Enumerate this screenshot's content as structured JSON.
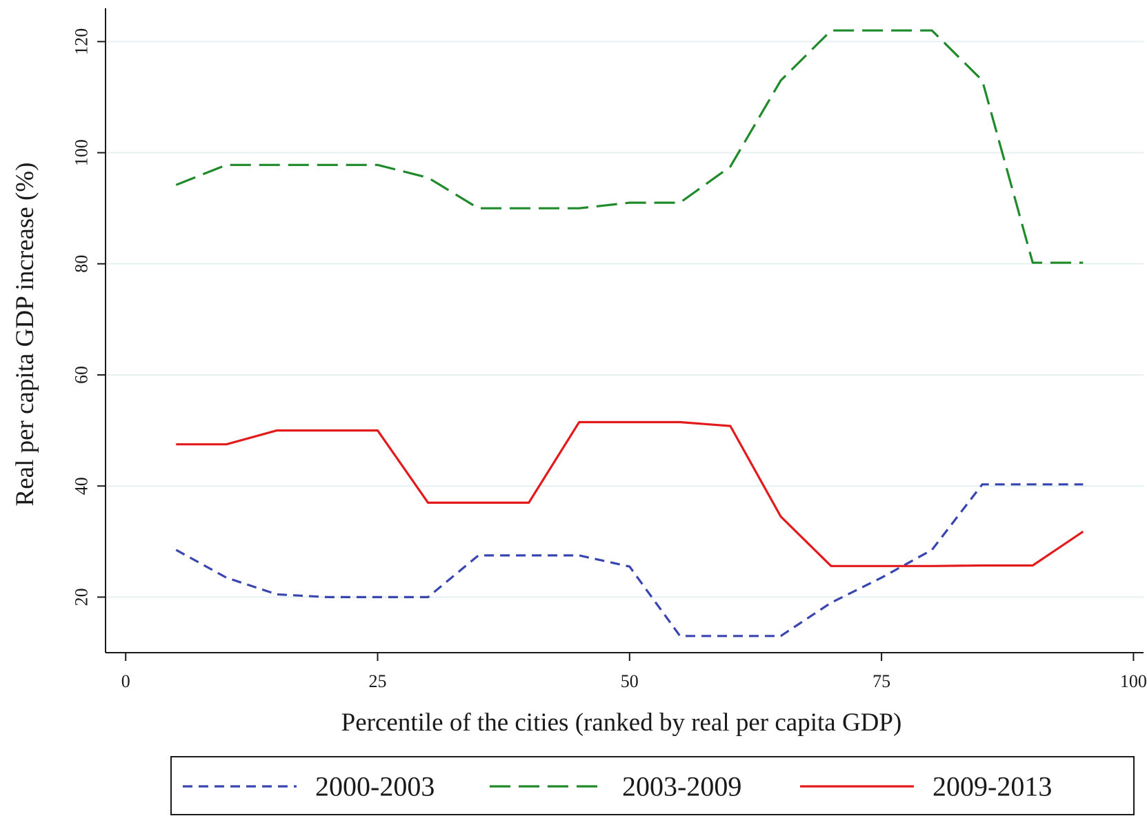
{
  "chart_data": {
    "type": "line",
    "xlabel": "Percentile of the cities (ranked by real per capita GDP)",
    "ylabel": "Real per capita GDP increase (%)",
    "xlim": [
      -2,
      101
    ],
    "ylim": [
      10,
      126
    ],
    "xticks": [
      0,
      25,
      50,
      75,
      100
    ],
    "xtick_labels": [
      "0",
      "25",
      "50",
      "75",
      "100"
    ],
    "yticks": [
      20,
      40,
      60,
      80,
      100,
      120
    ],
    "ytick_labels": [
      "20",
      "40",
      "60",
      "80",
      "100",
      "120"
    ],
    "grid": "horizontal",
    "legend_position": "bottom",
    "series": [
      {
        "name": "2000-2003",
        "color": "#3a46b0",
        "dash": "short-dash",
        "x": [
          5,
          10,
          15,
          20,
          25,
          30,
          35,
          40,
          45,
          50,
          55,
          60,
          65,
          70,
          75,
          80,
          85,
          90,
          95
        ],
        "y": [
          28.5,
          23.5,
          20.5,
          20,
          20,
          20,
          27.5,
          27.5,
          27.5,
          25.5,
          13,
          13,
          13,
          19,
          23.5,
          28.5,
          40.3,
          40.3,
          40.3
        ]
      },
      {
        "name": "2003-2009",
        "color": "#1f8a2a",
        "dash": "long-dash",
        "x": [
          5,
          10,
          15,
          20,
          25,
          30,
          35,
          40,
          45,
          50,
          55,
          60,
          65,
          70,
          75,
          80,
          85,
          90,
          95
        ],
        "y": [
          94.2,
          97.8,
          97.8,
          97.8,
          97.8,
          95.5,
          90,
          90,
          90,
          91,
          91,
          97.5,
          113,
          122,
          122,
          122,
          113,
          80.2,
          80.2
        ]
      },
      {
        "name": "2009-2013",
        "color": "#e31a1c",
        "dash": "solid",
        "x": [
          5,
          10,
          15,
          20,
          25,
          30,
          35,
          40,
          45,
          50,
          55,
          60,
          65,
          70,
          75,
          80,
          85,
          90,
          95
        ],
        "y": [
          47.5,
          47.5,
          50,
          50,
          50,
          37,
          37,
          37,
          51.5,
          51.5,
          51.5,
          50.8,
          34.5,
          25.6,
          25.6,
          25.6,
          25.7,
          25.7,
          31.8
        ]
      }
    ]
  }
}
